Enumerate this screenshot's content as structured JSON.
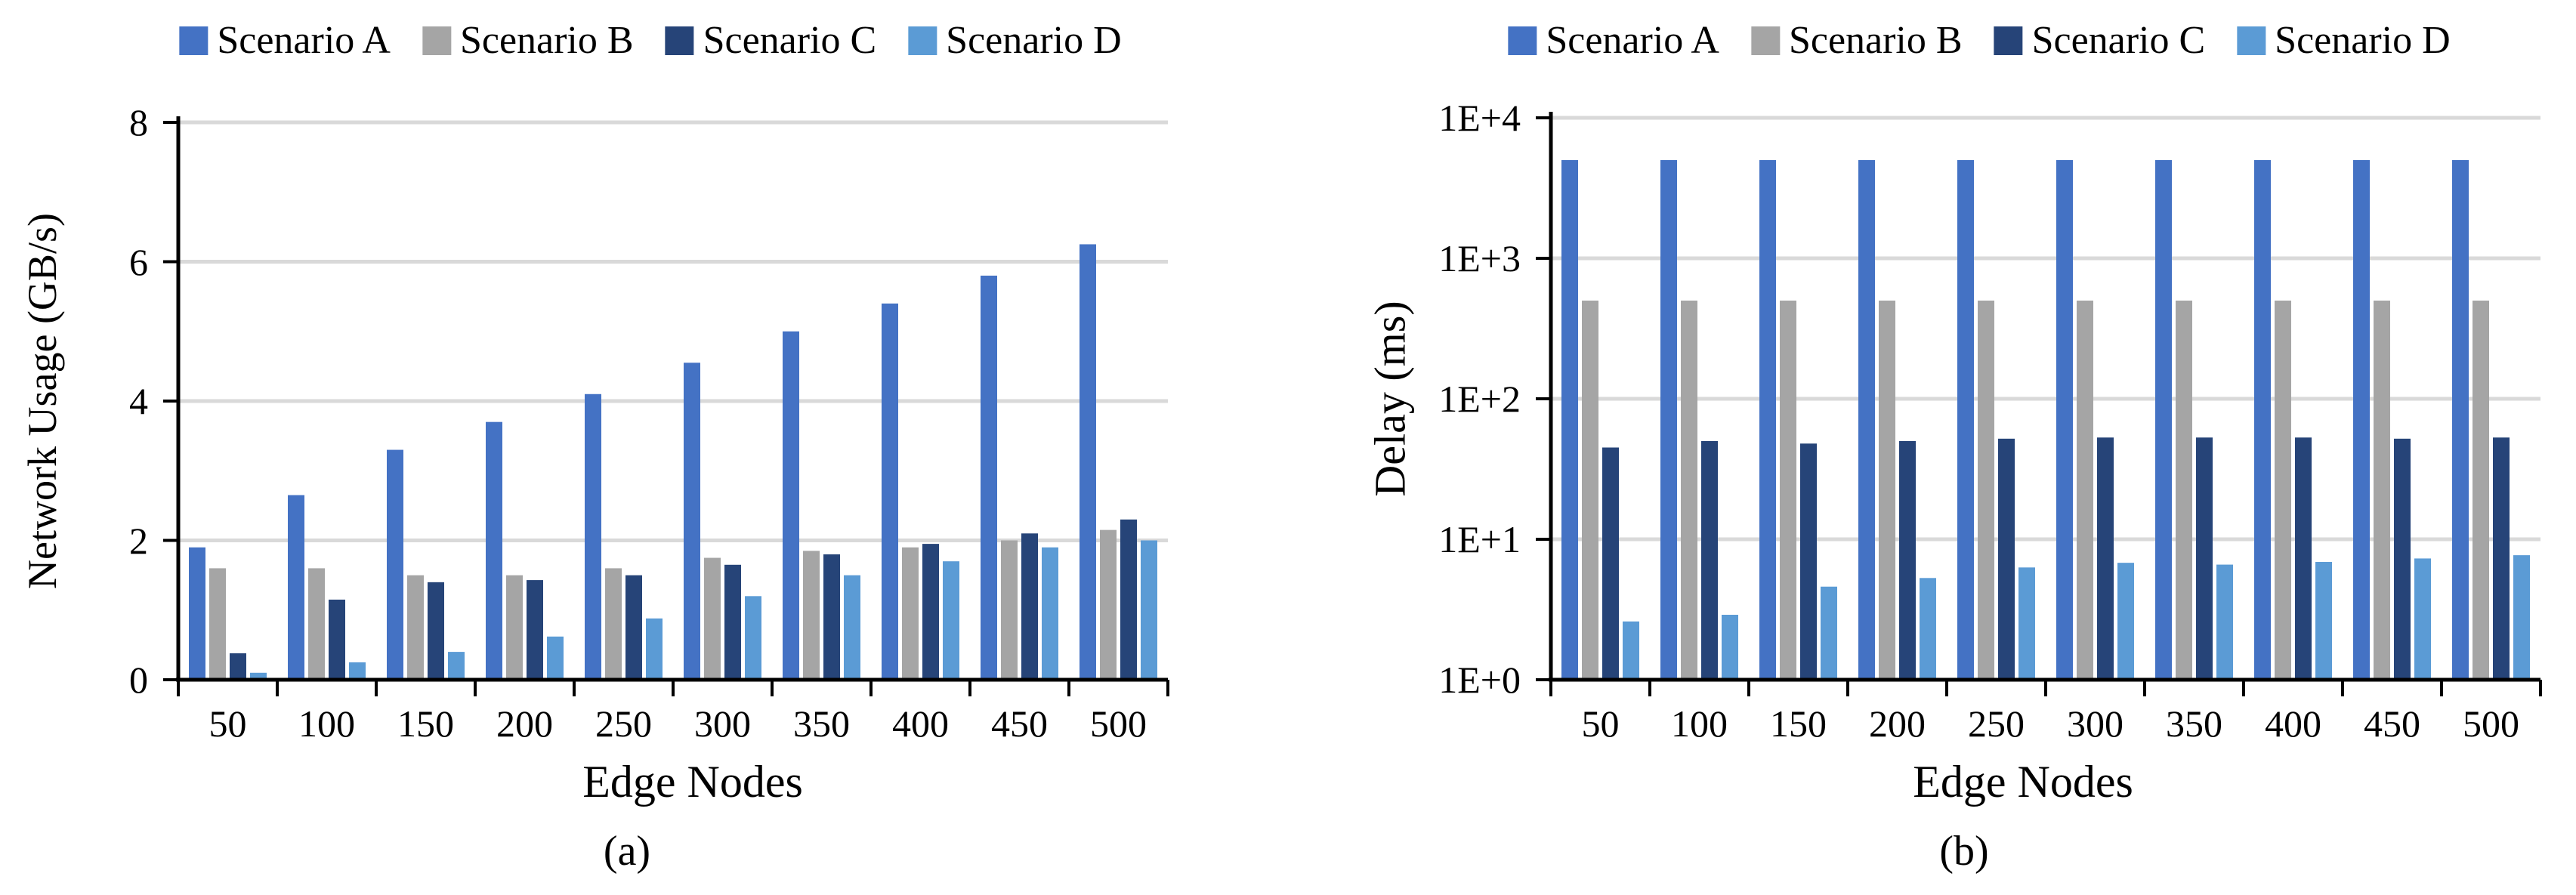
{
  "legend": {
    "items": [
      {
        "label": "Scenario A",
        "color": "#4472C4"
      },
      {
        "label": "Scenario B",
        "color": "#A5A5A5"
      },
      {
        "label": "Scenario C",
        "color": "#264478"
      },
      {
        "label": "Scenario D",
        "color": "#5B9BD5"
      }
    ]
  },
  "colors": {
    "grid": "#D9D9D9",
    "axis": "#000000",
    "background": "#FFFFFF"
  },
  "chart_data": [
    {
      "id": "a",
      "type": "bar",
      "caption": "(a)",
      "xlabel": "Edge Nodes",
      "ylabel": "Network Usage (GB/s)",
      "yscale": "linear",
      "ylim": [
        0,
        8
      ],
      "grid": true,
      "legend_position": "top",
      "yticks": [
        {
          "value": 0,
          "label": "0"
        },
        {
          "value": 2,
          "label": "2"
        },
        {
          "value": 4,
          "label": "4"
        },
        {
          "value": 6,
          "label": "6"
        },
        {
          "value": 8,
          "label": "8"
        }
      ],
      "categories": [
        "50",
        "100",
        "150",
        "200",
        "250",
        "300",
        "350",
        "400",
        "450",
        "500"
      ],
      "series": [
        {
          "name": "Scenario A",
          "color": "#4472C4",
          "values": [
            1.9,
            2.65,
            3.3,
            3.7,
            4.1,
            4.55,
            5.0,
            5.4,
            5.8,
            6.25
          ]
        },
        {
          "name": "Scenario B",
          "color": "#A5A5A5",
          "values": [
            1.6,
            1.6,
            1.5,
            1.5,
            1.6,
            1.75,
            1.85,
            1.9,
            2.0,
            2.15
          ]
        },
        {
          "name": "Scenario C",
          "color": "#264478",
          "values": [
            0.38,
            1.15,
            1.4,
            1.43,
            1.5,
            1.65,
            1.8,
            1.95,
            2.1,
            2.3
          ]
        },
        {
          "name": "Scenario D",
          "color": "#5B9BD5",
          "values": [
            0.1,
            0.25,
            0.4,
            0.62,
            0.88,
            1.2,
            1.5,
            1.7,
            1.9,
            2.0
          ]
        }
      ]
    },
    {
      "id": "b",
      "type": "bar",
      "caption": "(b)",
      "xlabel": "Edge Nodes",
      "ylabel": "Delay (ms)",
      "yscale": "log",
      "ylim": [
        1,
        10000
      ],
      "grid": true,
      "legend_position": "top",
      "yticks": [
        {
          "value": 1,
          "label": "1E+0"
        },
        {
          "value": 10,
          "label": "1E+1"
        },
        {
          "value": 100,
          "label": "1E+2"
        },
        {
          "value": 1000,
          "label": "1E+3"
        },
        {
          "value": 10000,
          "label": "1E+4"
        }
      ],
      "categories": [
        "50",
        "100",
        "150",
        "200",
        "250",
        "300",
        "350",
        "400",
        "450",
        "500"
      ],
      "series": [
        {
          "name": "Scenario A",
          "color": "#4472C4",
          "values": [
            5000,
            5000,
            5000,
            5000,
            5000,
            5000,
            5000,
            5000,
            5000,
            5000
          ]
        },
        {
          "name": "Scenario B",
          "color": "#A5A5A5",
          "values": [
            500,
            500,
            500,
            500,
            500,
            500,
            500,
            500,
            500,
            500
          ]
        },
        {
          "name": "Scenario C",
          "color": "#264478",
          "values": [
            45,
            50,
            48,
            50,
            52,
            53,
            53,
            53,
            52,
            53
          ]
        },
        {
          "name": "Scenario D",
          "color": "#5B9BD5",
          "values": [
            2.6,
            2.9,
            4.6,
            5.3,
            6.3,
            6.8,
            6.6,
            6.9,
            7.3,
            7.7
          ]
        }
      ]
    }
  ]
}
